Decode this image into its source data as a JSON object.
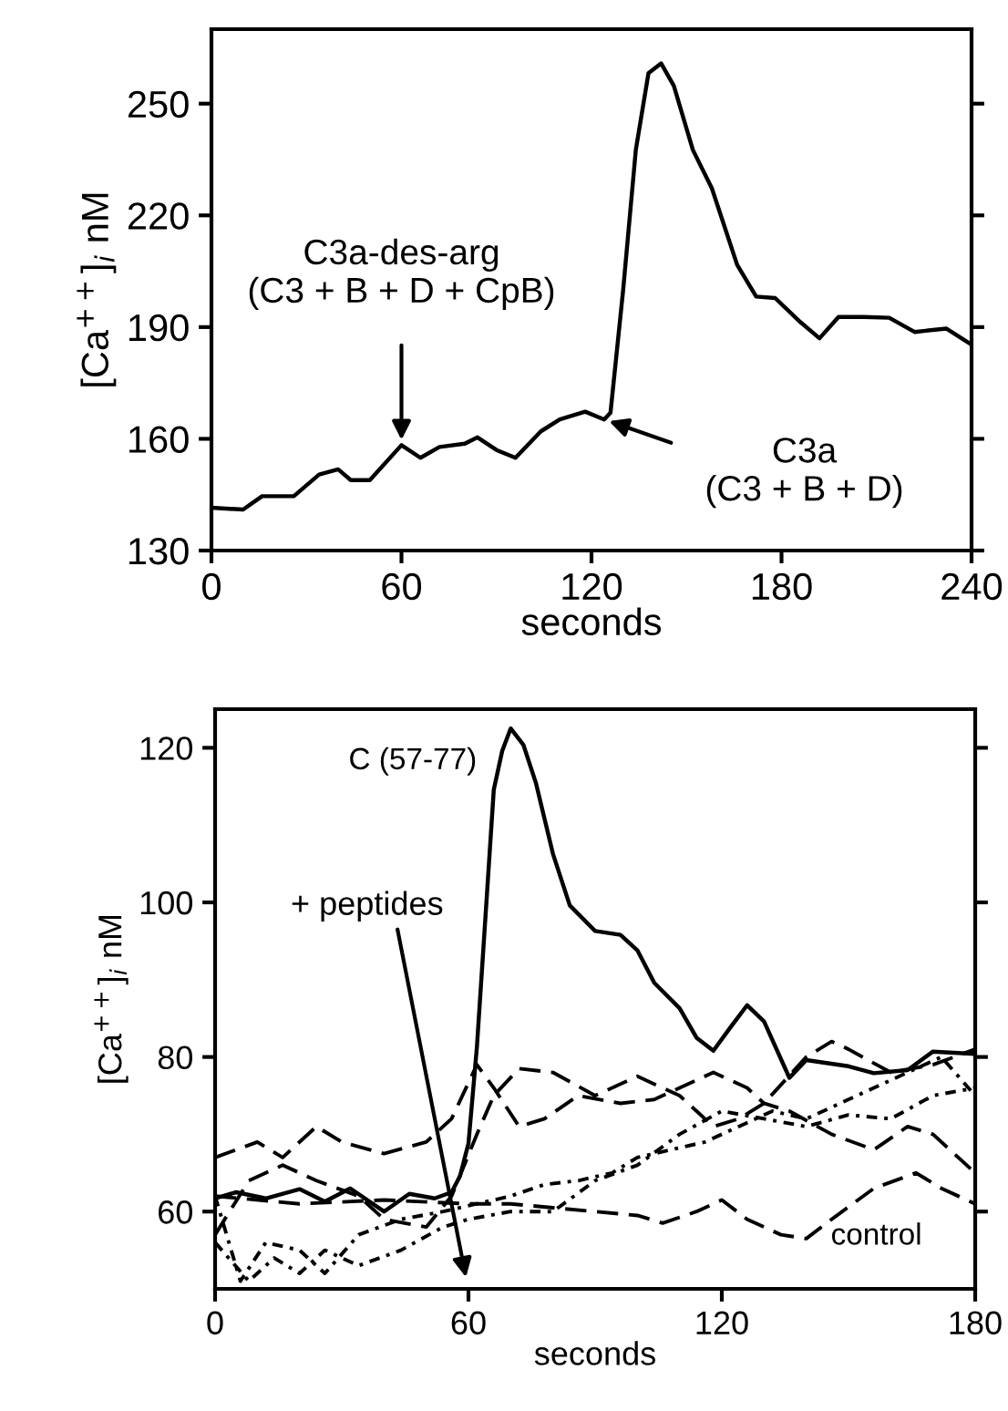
{
  "chart_data": [
    {
      "type": "line",
      "xlabel": "seconds",
      "ylabel": "[Ca$^{++}$]$_{i}$ nM",
      "xlim": [
        0,
        240
      ],
      "ylim": [
        130,
        270
      ],
      "xticks": [
        0,
        60,
        120,
        180,
        240
      ],
      "yticks": [
        130,
        160,
        190,
        220,
        250
      ],
      "grid": false,
      "legend": false,
      "marker": "none",
      "series": [
        {
          "color": "#000000",
          "line_style": "solid",
          "x": [
            0,
            10,
            16,
            26,
            34,
            40,
            44,
            50,
            60,
            66,
            72,
            80,
            84,
            90,
            96,
            104,
            110,
            118,
            124,
            126,
            130,
            134,
            138,
            142,
            146,
            152,
            158,
            166,
            172,
            178,
            186,
            192,
            198,
            206,
            214,
            222,
            232,
            240
          ],
          "values": [
            141.5,
            141,
            144.6,
            144.6,
            150.4,
            151.8,
            148.9,
            148.9,
            158.3,
            154.9,
            157.8,
            158.7,
            160.4,
            157,
            154.9,
            162,
            165.2,
            167.3,
            165.2,
            167,
            200,
            237.6,
            258.2,
            260.8,
            254.8,
            237.6,
            227.3,
            206.7,
            198.2,
            197.8,
            191.3,
            187,
            192.7,
            192.7,
            192.5,
            188.7,
            189.6,
            185.3
          ]
        }
      ],
      "annotations": [
        {
          "text": "C3a-des-arg\n(C3 + B + D + CpB)",
          "x": 60,
          "y": 158.3
        },
        {
          "text": "C3a\n(C3 + B + D)",
          "x": 124,
          "y": 165.2
        }
      ]
    },
    {
      "type": "line",
      "xlabel": "seconds",
      "ylabel": "[Ca$^{++}$]$_{i}$ nM",
      "xlim": [
        0,
        180
      ],
      "ylim": [
        50,
        125
      ],
      "xticks": [
        0,
        60,
        120,
        180
      ],
      "yticks": [
        60,
        80,
        100,
        120
      ],
      "grid": false,
      "legend": false,
      "marker": "none",
      "series": [
        {
          "name": "C (57-77)",
          "color": "#000000",
          "line_style": "solid",
          "x": [
            0,
            5,
            12,
            20,
            26,
            32,
            40,
            46,
            52,
            56,
            58,
            60,
            62,
            64,
            66,
            68,
            70,
            73,
            76,
            80,
            84,
            90,
            96,
            100,
            104,
            110,
            114,
            118,
            122,
            126,
            130,
            136,
            140,
            150,
            156,
            164,
            170,
            180
          ],
          "values": [
            61.7,
            62.5,
            61.7,
            62.9,
            61.3,
            63,
            60,
            62.3,
            61.7,
            62.5,
            64.6,
            68.8,
            81.3,
            97.9,
            114.6,
            119.6,
            122.5,
            120.4,
            115.4,
            106.3,
            99.6,
            96.3,
            95.8,
            93.8,
            89.6,
            86.3,
            82.5,
            80.8,
            83.8,
            86.7,
            84.6,
            77.3,
            79.6,
            78.8,
            77.9,
            78.3,
            80.7,
            80.4
          ]
        },
        {
          "color": "#000000",
          "line_style": "dashed",
          "x": [
            0,
            10,
            16,
            24,
            30,
            40,
            50,
            56,
            62,
            66,
            72,
            78,
            86,
            96,
            104,
            110,
            118,
            126,
            130,
            136,
            146,
            156,
            164,
            170,
            180
          ],
          "values": [
            67,
            69,
            67,
            71,
            69,
            67.5,
            69,
            72,
            79,
            76,
            71,
            72,
            75,
            74,
            74.5,
            76,
            78,
            76,
            74,
            73,
            70,
            68,
            71,
            70,
            65
          ]
        },
        {
          "color": "#000000",
          "line_style": "dashed",
          "x": [
            0,
            8,
            16,
            24,
            34,
            40,
            50,
            56,
            62,
            66,
            72,
            80,
            90,
            100,
            110,
            118,
            124,
            130,
            140,
            146,
            150,
            160,
            170,
            180
          ],
          "values": [
            57,
            64,
            66,
            64,
            62,
            59,
            58,
            62,
            70,
            75,
            78.5,
            78,
            75,
            77.5,
            75,
            71,
            72,
            74,
            80,
            82,
            81,
            78,
            79,
            81
          ]
        },
        {
          "color": "#000000",
          "line_style": "dotted",
          "x": [
            0,
            8,
            14,
            20,
            26,
            34,
            44,
            54,
            60,
            70,
            80,
            90,
            100,
            110,
            120,
            130,
            140,
            150,
            160,
            170,
            180
          ],
          "values": [
            56,
            51,
            54,
            52,
            55,
            53,
            55,
            58,
            59,
            60,
            60,
            64,
            66,
            70,
            73,
            72,
            71,
            72.5,
            72,
            75,
            76
          ]
        },
        {
          "color": "#000000",
          "line_style": "dotted",
          "x": [
            0,
            6,
            12,
            20,
            26,
            34,
            44,
            54,
            62,
            70,
            78,
            86,
            94,
            100,
            108,
            116,
            124,
            132,
            140,
            148,
            156,
            164,
            172,
            180
          ],
          "values": [
            62,
            51,
            56,
            55,
            52,
            57,
            59,
            60,
            61,
            62,
            63.5,
            64,
            65,
            67,
            68,
            69,
            71,
            73,
            72,
            74,
            76,
            78,
            80,
            75
          ]
        },
        {
          "name": "control",
          "color": "#000000",
          "line_style": "dashed",
          "x": [
            0,
            20,
            40,
            60,
            70,
            80,
            90,
            100,
            106,
            114,
            120,
            126,
            134,
            140,
            146,
            156,
            166,
            172,
            180
          ],
          "values": [
            62,
            61,
            61.5,
            61,
            61,
            60.5,
            60,
            59.5,
            58.5,
            60,
            61.5,
            59,
            57,
            56.5,
            59,
            63,
            65,
            63,
            61
          ]
        }
      ],
      "annotations": [
        "+ peptides"
      ]
    }
  ]
}
